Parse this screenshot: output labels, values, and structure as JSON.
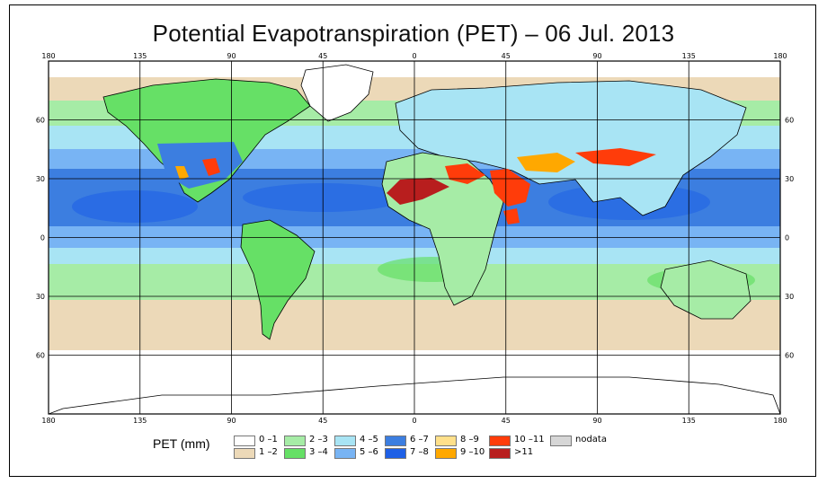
{
  "title": "Potential Evapotranspiration (PET) – 06 Jul. 2013",
  "lon_ticks": [
    "180",
    "135",
    "90",
    "45",
    "0",
    "45",
    "90",
    "135",
    "180"
  ],
  "lat_ticks": [
    "60",
    "30",
    "0",
    "30",
    "60"
  ],
  "legend": {
    "label": "PET (mm)",
    "items": [
      {
        "text": "0 –1",
        "color": "#ffffff"
      },
      {
        "text": "1 –2",
        "color": "#ecd9b8"
      },
      {
        "text": "2 –3",
        "color": "#a6eca6"
      },
      {
        "text": "3 –4",
        "color": "#66e066"
      },
      {
        "text": "4 –5",
        "color": "#a8e4f4"
      },
      {
        "text": "5 –6",
        "color": "#78b4f4"
      },
      {
        "text": "6 –7",
        "color": "#3c7ee0"
      },
      {
        "text": "7 –8",
        "color": "#1e60e6"
      },
      {
        "text": "8 –9",
        "color": "#ffe08a"
      },
      {
        "text": "9 –10",
        "color": "#ffa800"
      },
      {
        "text": "10 –11",
        "color": "#ff3c0a"
      },
      {
        "text": ">11",
        "color": "#b81e1e"
      },
      {
        "text": "nodata",
        "color": "#d6d6d6"
      }
    ]
  }
}
